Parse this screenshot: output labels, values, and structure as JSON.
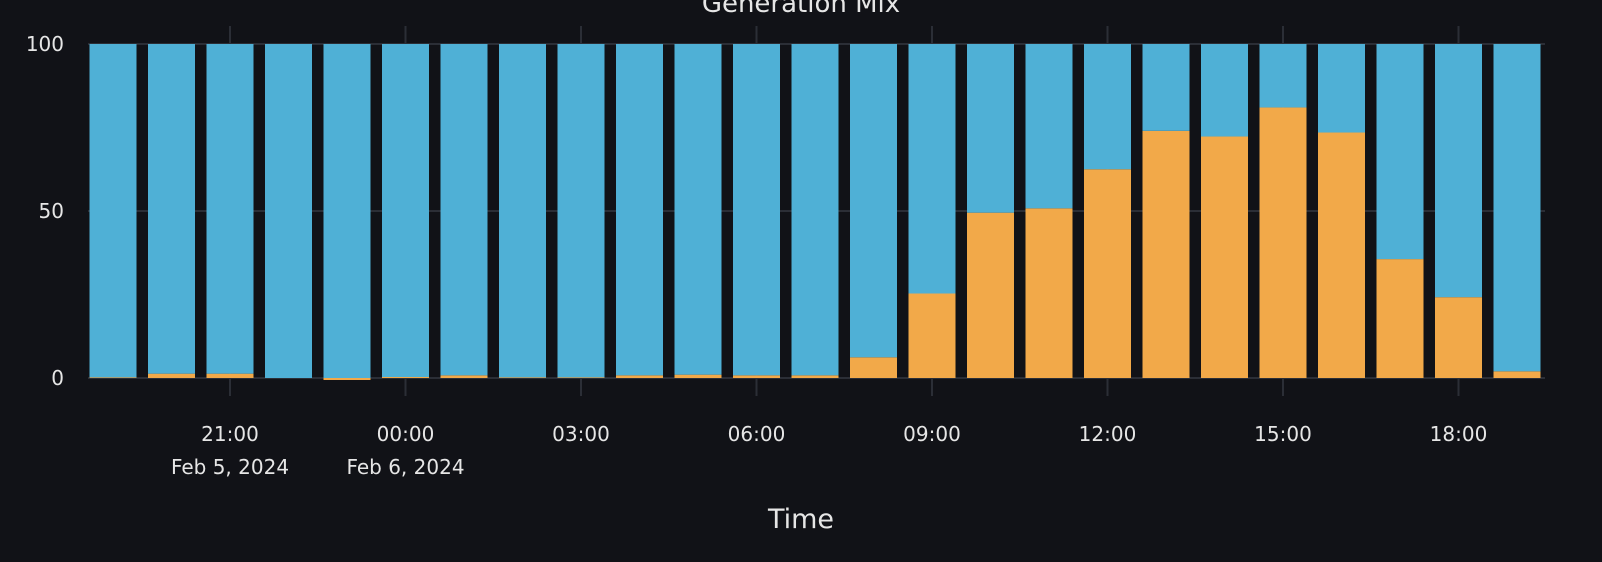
{
  "chart_data": {
    "type": "bar",
    "stacked": true,
    "title": "Generation Mix",
    "xlabel": "Time",
    "ylabel": "",
    "ylim": [
      0,
      100
    ],
    "yticks": [
      0,
      50,
      100
    ],
    "grid": true,
    "legend": "none",
    "colors": {
      "background": "#111217",
      "grid": "#2b2e36",
      "text": "#e6e6e6",
      "series_top": "#4fb0d6",
      "series_bottom": "#f2a949"
    },
    "x": [
      "2024-02-05 19:00",
      "2024-02-05 20:00",
      "2024-02-05 21:00",
      "2024-02-05 22:00",
      "2024-02-05 23:00",
      "2024-02-06 00:00",
      "2024-02-06 01:00",
      "2024-02-06 02:00",
      "2024-02-06 03:00",
      "2024-02-06 04:00",
      "2024-02-06 05:00",
      "2024-02-06 06:00",
      "2024-02-06 07:00",
      "2024-02-06 08:00",
      "2024-02-06 09:00",
      "2024-02-06 10:00",
      "2024-02-06 11:00",
      "2024-02-06 12:00",
      "2024-02-06 13:00",
      "2024-02-06 14:00",
      "2024-02-06 15:00",
      "2024-02-06 16:00",
      "2024-02-06 17:00",
      "2024-02-06 18:00",
      "2024-02-06 19:00"
    ],
    "series": [
      {
        "color": "#f2a949",
        "values": [
          0.2,
          1.3,
          1.3,
          0.0,
          -0.6,
          0.3,
          0.8,
          0.2,
          0.2,
          0.8,
          1.0,
          0.8,
          0.8,
          6.2,
          25.3,
          49.5,
          50.8,
          62.5,
          74.0,
          72.3,
          81.0,
          73.5,
          35.6,
          24.2,
          2.0
        ]
      },
      {
        "color": "#4fb0d6",
        "values": [
          99.8,
          98.7,
          98.7,
          100.0,
          100.0,
          99.7,
          99.2,
          99.8,
          99.8,
          99.2,
          99.0,
          99.2,
          99.2,
          93.8,
          74.7,
          50.5,
          49.2,
          37.5,
          26.0,
          27.7,
          19.0,
          26.5,
          64.4,
          75.8,
          98.0
        ]
      }
    ],
    "xticks": [
      {
        "time": "21:00",
        "date": "Feb 5, 2024",
        "index": 2
      },
      {
        "time": "00:00",
        "date": "Feb 6, 2024",
        "index": 5
      },
      {
        "time": "03:00",
        "date": "",
        "index": 8
      },
      {
        "time": "06:00",
        "date": "",
        "index": 11
      },
      {
        "time": "09:00",
        "date": "",
        "index": 14
      },
      {
        "time": "12:00",
        "date": "",
        "index": 17
      },
      {
        "time": "15:00",
        "date": "",
        "index": 20
      },
      {
        "time": "18:00",
        "date": "",
        "index": 23
      }
    ]
  }
}
